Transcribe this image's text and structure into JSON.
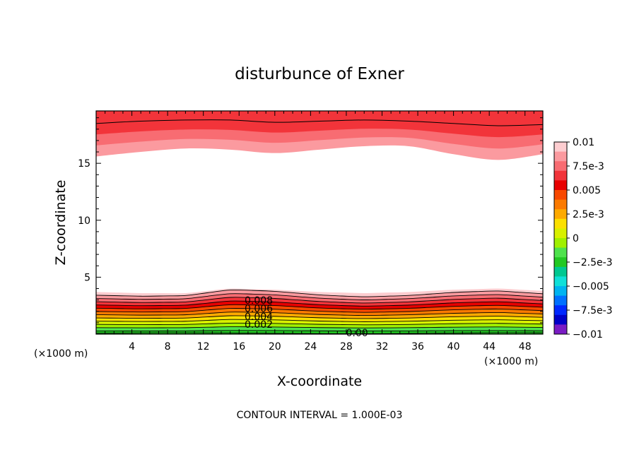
{
  "chart_data": {
    "type": "contour",
    "title": "disturbunce of Exner",
    "xlabel": "X-coordinate",
    "ylabel": "Z-coordinate",
    "x_unit_left": "(×1000 m)",
    "x_unit_right": "(×1000 m)",
    "xlim": [
      0,
      50
    ],
    "ylim": [
      0,
      19.6
    ],
    "x_ticks": [
      4,
      8,
      12,
      16,
      20,
      24,
      28,
      32,
      36,
      40,
      44,
      48
    ],
    "x_tick_labels": [
      "4",
      "8",
      "12",
      "16",
      "20",
      "24",
      "28",
      "32",
      "36",
      "40",
      "44",
      "48"
    ],
    "y_ticks": [
      5,
      10,
      15
    ],
    "y_tick_labels": [
      "5",
      "10",
      "15"
    ],
    "footer": "CONTOUR INTERVAL = 1.000E-03",
    "colorbar": {
      "min": -0.01,
      "max": 0.01,
      "labels": [
        "0.01",
        "7.5e-3",
        "0.005",
        "2.5e-3",
        "0",
        "−2.5e-3",
        "−0.005",
        "−7.5e-3",
        "−0.01"
      ],
      "colors": [
        "#fdcdd0",
        "#fb9a9f",
        "#f86c72",
        "#f2343a",
        "#e80000",
        "#f84800",
        "#fb7a00",
        "#fdaa00",
        "#fbe000",
        "#d8f000",
        "#a0f000",
        "#4ee24c",
        "#22c822",
        "#00c890",
        "#10e0d8",
        "#00b4f0",
        "#0070ff",
        "#0028ff",
        "#0000c8",
        "#7a1cc4"
      ]
    },
    "contour_labels": [
      "0.008",
      "0.006",
      "0.004",
      "0.002",
      "0.00"
    ],
    "upper_band": {
      "x": [
        0,
        5,
        10,
        15,
        20,
        25,
        30,
        35,
        40,
        45,
        50
      ],
      "bottom_z": [
        15.6,
        16.0,
        16.3,
        16.2,
        15.9,
        16.2,
        16.5,
        16.5,
        15.8,
        15.3,
        15.8
      ],
      "top_line_z": [
        18.5,
        18.7,
        18.8,
        18.8,
        18.6,
        18.7,
        18.8,
        18.7,
        18.5,
        18.3,
        18.4
      ]
    },
    "lower_band": {
      "x": [
        0,
        5,
        10,
        15,
        20,
        25,
        30,
        35,
        40,
        45,
        50
      ],
      "top_z": [
        3.7,
        3.6,
        3.6,
        4.0,
        3.9,
        3.7,
        3.6,
        3.7,
        3.9,
        4.0,
        3.8
      ]
    }
  }
}
